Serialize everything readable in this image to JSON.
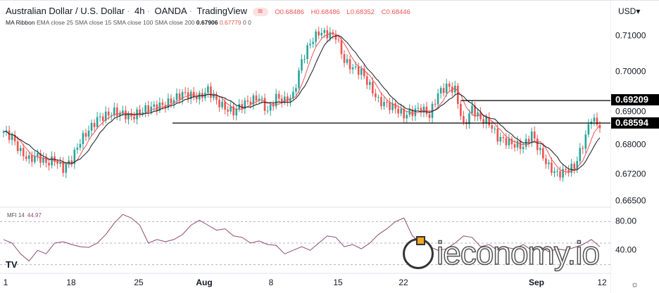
{
  "header": {
    "symbol": "Australian Dollar / U.S. Dollar",
    "interval": "4h",
    "exchange": "OANDA",
    "source": "TradingView",
    "ohlc": {
      "o": "O0.68486",
      "h": "H0.68486",
      "l": "L0.68352",
      "c": "C0.68446"
    }
  },
  "ma_ribbon": {
    "label": "MA Ribbon",
    "params": "EMA close 25 SMA close 15 SMA close 100 SMA close 200",
    "v1": "0.67906",
    "v2": "0.67779",
    "v3": "0",
    "v4": "0"
  },
  "price_axis": {
    "currency": "USD",
    "ticks": [
      "0.71000",
      "0.70000",
      "0.69000",
      "0.68000",
      "0.67200",
      "0.66500"
    ],
    "tags": [
      "0.69209",
      "0.68594"
    ]
  },
  "mfi": {
    "label": "MFI 14",
    "value": "44.97",
    "ticks": [
      "80.00",
      "40.00"
    ]
  },
  "time_axis": [
    "1",
    "18",
    "25",
    "Aug",
    "8",
    "15",
    "22",
    "Sep",
    "12"
  ],
  "watermark": "ieconomy.io",
  "colors": {
    "up": "#26a69a",
    "down": "#ef5350",
    "ema": "#ef5350",
    "sma": "#131722",
    "mfi": "#8d4a6b"
  },
  "chart_data": {
    "type": "candlestick",
    "closes": [
      0.6835,
      0.682,
      0.678,
      0.676,
      0.677,
      0.675,
      0.676,
      0.6735,
      0.676,
      0.681,
      0.684,
      0.687,
      0.688,
      0.689,
      0.6885,
      0.6875,
      0.689,
      0.69,
      0.6905,
      0.691,
      0.6925,
      0.694,
      0.6935,
      0.693,
      0.695,
      0.692,
      0.69,
      0.689,
      0.691,
      0.692,
      0.693,
      0.689,
      0.693,
      0.692,
      0.6935,
      0.703,
      0.708,
      0.711,
      0.7105,
      0.71,
      0.703,
      0.701,
      0.7,
      0.696,
      0.692,
      0.691,
      0.69,
      0.688,
      0.689,
      0.69,
      0.688,
      0.694,
      0.696,
      0.695,
      0.685,
      0.69,
      0.687,
      0.686,
      0.682,
      0.681,
      0.68,
      0.6795,
      0.683,
      0.678,
      0.674,
      0.672,
      0.673,
      0.674,
      0.68,
      0.6875,
      0.6845
    ],
    "mfi": [
      55,
      50,
      35,
      25,
      40,
      35,
      50,
      52,
      48,
      45,
      44,
      50,
      62,
      78,
      90,
      85,
      75,
      50,
      55,
      52,
      55,
      62,
      75,
      82,
      75,
      68,
      70,
      60,
      58,
      50,
      53,
      48,
      47,
      35,
      40,
      45,
      40,
      50,
      60,
      58,
      45,
      48,
      42,
      50,
      62,
      70,
      80,
      85,
      60,
      50,
      45,
      40,
      42,
      50,
      60,
      58,
      45,
      48,
      40,
      44,
      42,
      48,
      40,
      45,
      38,
      42,
      40,
      44,
      48,
      55,
      44.97
    ],
    "horizontal_levels": [
      0.69209,
      0.68594
    ]
  }
}
